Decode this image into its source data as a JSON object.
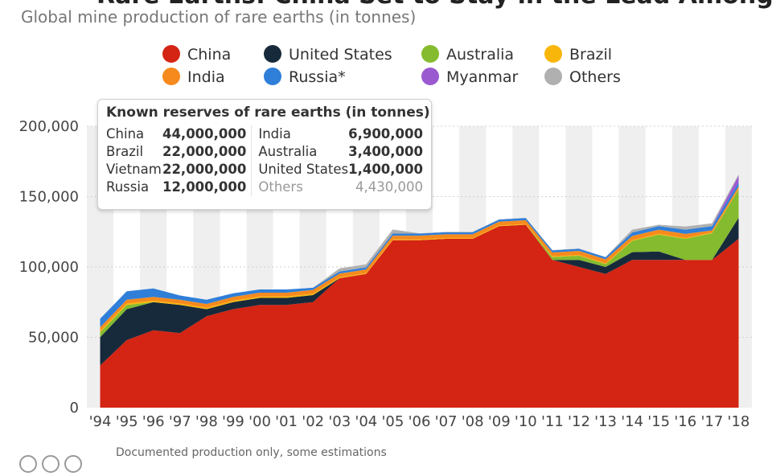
{
  "header": {
    "title": "Rare Earths: China Set to Stay in the Lead Among Producers",
    "subtitle": "Global mine production of rare earths (in tonnes)"
  },
  "footnote": "Documented production only, some estimations",
  "colors": {
    "China": "#d42413",
    "United States": "#172a3b",
    "Australia": "#85bb2e",
    "Brazil": "#f9b60a",
    "India": "#f68a1c",
    "Russia": "#2f7fd9",
    "Myanmar": "#9b59d0",
    "Others": "#b0b0b0",
    "band": "#efefef"
  },
  "legend": [
    {
      "name": "China",
      "label": "China"
    },
    {
      "name": "United States",
      "label": "United States"
    },
    {
      "name": "Australia",
      "label": "Australia"
    },
    {
      "name": "Brazil",
      "label": "Brazil"
    },
    {
      "name": "India",
      "label": "India"
    },
    {
      "name": "Russia",
      "label": "Russia*"
    },
    {
      "name": "Myanmar",
      "label": "Myanmar"
    },
    {
      "name": "Others",
      "label": "Others"
    }
  ],
  "reserves": {
    "title": "Known reserves of rare earths (in tonnes)",
    "left": [
      {
        "country": "China",
        "value": "44,000,000"
      },
      {
        "country": "Brazil",
        "value": "22,000,000"
      },
      {
        "country": "Vietnam",
        "value": "22,000,000"
      },
      {
        "country": "Russia",
        "value": "12,000,000"
      }
    ],
    "right": [
      {
        "country": "India",
        "value": "6,900,000"
      },
      {
        "country": "Australia",
        "value": "3,400,000"
      },
      {
        "country": "United States",
        "value": "1,400,000"
      },
      {
        "country": "Others",
        "value": "4,430,000"
      }
    ]
  },
  "chart_data": {
    "type": "area",
    "stacked": true,
    "title": "",
    "xlabel": "",
    "ylabel": "",
    "ylim": [
      0,
      200000
    ],
    "y_ticks": [
      0,
      50000,
      100000,
      150000,
      200000
    ],
    "y_tick_labels": [
      "0",
      "50,000",
      "100,000",
      "150,000",
      "200,000"
    ],
    "categories": [
      "'94",
      "'95",
      "'96",
      "'97",
      "'98",
      "'99",
      "'00",
      "'01",
      "'02",
      "'03",
      "'04",
      "'05",
      "'06",
      "'07",
      "'08",
      "'09",
      "'10",
      "'11",
      "'12",
      "'13",
      "'14",
      "'15",
      "'16",
      "'17",
      "'18"
    ],
    "series": [
      {
        "name": "China",
        "values": [
          30000,
          48000,
          55000,
          53000,
          65000,
          70000,
          73000,
          73000,
          75000,
          92000,
          95000,
          119000,
          119000,
          120000,
          120000,
          129000,
          130000,
          105000,
          100000,
          95000,
          105000,
          105000,
          105000,
          105000,
          120000
        ]
      },
      {
        "name": "United States",
        "values": [
          20000,
          22000,
          20000,
          20000,
          5000,
          5000,
          5000,
          5000,
          5000,
          0,
          0,
          0,
          0,
          0,
          0,
          0,
          0,
          0,
          5000,
          5000,
          5500,
          6000,
          0,
          0,
          15000
        ]
      },
      {
        "name": "Australia",
        "values": [
          3500,
          3000,
          0,
          0,
          0,
          0,
          0,
          0,
          0,
          0,
          0,
          0,
          0,
          0,
          0,
          0,
          0,
          2000,
          3000,
          2000,
          8000,
          12000,
          15000,
          19000,
          20000
        ]
      },
      {
        "name": "Brazil",
        "values": [
          1000,
          1000,
          1000,
          1000,
          1000,
          1000,
          1000,
          1000,
          1000,
          600,
          500,
          500,
          500,
          500,
          500,
          500,
          500,
          500,
          500,
          500,
          500,
          500,
          500,
          500,
          500
        ]
      },
      {
        "name": "India",
        "values": [
          2700,
          2700,
          2700,
          2700,
          2700,
          2700,
          2700,
          2700,
          2700,
          2700,
          2700,
          2700,
          2700,
          2700,
          2700,
          2700,
          2700,
          2800,
          2900,
          2900,
          3000,
          3000,
          3000,
          1500,
          1800
        ]
      },
      {
        "name": "Russia",
        "values": [
          6000,
          6000,
          6000,
          3000,
          3000,
          2600,
          2300,
          2300,
          1500,
          1500,
          1500,
          1500,
          1500,
          1500,
          1500,
          1500,
          1500,
          1500,
          1500,
          1500,
          2500,
          2500,
          3000,
          3000,
          2600
        ]
      },
      {
        "name": "Myanmar",
        "values": [
          0,
          0,
          0,
          0,
          0,
          0,
          0,
          0,
          0,
          0,
          0,
          0,
          0,
          0,
          0,
          0,
          0,
          0,
          0,
          0,
          0,
          0,
          0,
          0,
          5000
        ]
      },
      {
        "name": "Others",
        "values": [
          0,
          0,
          0,
          0,
          0,
          0,
          0,
          0,
          0,
          2200,
          2200,
          2900,
          200,
          200,
          200,
          200,
          200,
          200,
          200,
          200,
          2000,
          1000,
          2200,
          2000,
          1000
        ]
      }
    ]
  }
}
